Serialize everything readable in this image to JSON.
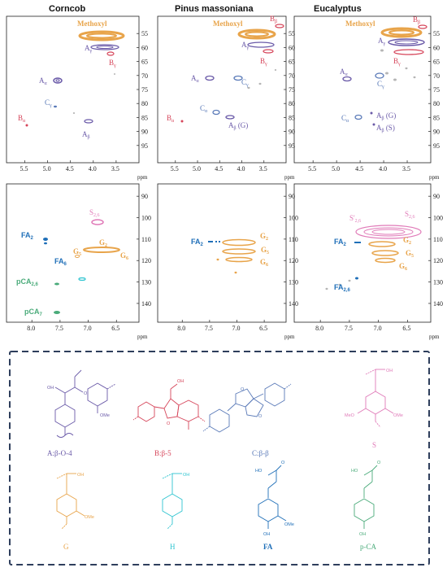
{
  "columns": [
    "Corncob",
    "Pinus massoniana",
    "Eucalyptus"
  ],
  "axes": {
    "top_y_ticks": [
      "55",
      "60",
      "65",
      "70",
      "75",
      "80",
      "85",
      "90",
      "95"
    ],
    "top_x_ticks": [
      "5.5",
      "5.0",
      "4.5",
      "4.0",
      "3.5"
    ],
    "bottom_y_ticks": [
      "90",
      "100",
      "110",
      "120",
      "130",
      "140"
    ],
    "bottom_x_ticks": [
      "8.0",
      "7.5",
      "7.0",
      "6.5"
    ],
    "unit": "ppm"
  },
  "chart_data": [
    {
      "type": "scatter",
      "panel": "Corncob aliphatic",
      "peaks": [
        {
          "label": "Methoxyl",
          "x": 3.8,
          "y": 55.8
        },
        {
          "label": "Aγ",
          "x": 3.8,
          "y": 59.8
        },
        {
          "label": "Bγ",
          "x": 3.55,
          "y": 63
        },
        {
          "label": "Aα",
          "x": 4.85,
          "y": 72
        },
        {
          "label": "Cγ",
          "x": 4.8,
          "y": 81.5
        },
        {
          "label": "Bα",
          "x": 5.5,
          "y": 87.2
        },
        {
          "label": "Aβ",
          "x": 4.05,
          "y": 86
        }
      ]
    },
    {
      "type": "scatter",
      "panel": "Pinus massoniana aliphatic",
      "peaks": [
        {
          "label": "Methoxyl",
          "x": 3.75,
          "y": 55.8
        },
        {
          "label": "Bβ",
          "x": 3.05,
          "y": 53.5
        },
        {
          "label": "Aγ",
          "x": 3.6,
          "y": 59.8
        },
        {
          "label": "Bγ",
          "x": 3.6,
          "y": 63
        },
        {
          "label": "Aα",
          "x": 4.85,
          "y": 71.8
        },
        {
          "label": "Cα",
          "x": 4.65,
          "y": 85
        },
        {
          "label": "Aβ (G)",
          "x": 4.3,
          "y": 84
        },
        {
          "label": "Bα",
          "x": 5.45,
          "y": 87
        }
      ]
    },
    {
      "type": "scatter",
      "panel": "Eucalyptus aliphatic",
      "peaks": [
        {
          "label": "Methoxyl",
          "x": 3.75,
          "y": 55.8
        },
        {
          "label": "Bβ",
          "x": 3.05,
          "y": 54
        },
        {
          "label": "Aγ",
          "x": 3.6,
          "y": 59.8
        },
        {
          "label": "Bγ",
          "x": 3.5,
          "y": 63
        },
        {
          "label": "Aα",
          "x": 4.85,
          "y": 72
        },
        {
          "label": "Cγ",
          "x": 3.8,
          "y": 74
        },
        {
          "label": "Cα",
          "x": 4.65,
          "y": 84.5
        },
        {
          "label": "Aβ (G)",
          "x": 4.3,
          "y": 84
        },
        {
          "label": "Aβ (S)",
          "x": 4.1,
          "y": 86
        }
      ]
    },
    {
      "type": "scatter",
      "panel": "Corncob aromatic",
      "peaks": [
        {
          "label": "S2,6",
          "x": 6.75,
          "y": 104
        },
        {
          "label": "FA2",
          "x": 7.6,
          "y": 111
        },
        {
          "label": "G2",
          "x": 6.75,
          "y": 111
        },
        {
          "label": "G5",
          "x": 6.85,
          "y": 115
        },
        {
          "label": "G6",
          "x": 6.75,
          "y": 118
        },
        {
          "label": "FA6",
          "x": 7.15,
          "y": 123
        },
        {
          "label": "pCA2,6",
          "x": 7.5,
          "y": 130
        },
        {
          "label": "pCA7",
          "x": 7.45,
          "y": 144
        }
      ]
    },
    {
      "type": "scatter",
      "panel": "Pinus massoniana aromatic",
      "peaks": [
        {
          "label": "FA2",
          "x": 7.3,
          "y": 111
        },
        {
          "label": "G2",
          "x": 6.85,
          "y": 111
        },
        {
          "label": "G5",
          "x": 6.85,
          "y": 115
        },
        {
          "label": "G6",
          "x": 6.85,
          "y": 118.5
        }
      ]
    },
    {
      "type": "scatter",
      "panel": "Eucalyptus aromatic",
      "peaks": [
        {
          "label": "S'2,6",
          "x": 7.1,
          "y": 107
        },
        {
          "label": "S2,6",
          "x": 6.6,
          "y": 104
        },
        {
          "label": "FA2",
          "x": 7.25,
          "y": 111
        },
        {
          "label": "G2",
          "x": 6.85,
          "y": 111
        },
        {
          "label": "G5",
          "x": 6.85,
          "y": 115
        },
        {
          "label": "G6",
          "x": 6.85,
          "y": 118
        },
        {
          "label": "FA2,6",
          "x": 7.2,
          "y": 127
        }
      ]
    }
  ],
  "labels": {
    "methoxyl": "Methoxyl",
    "A": "A",
    "B": "B",
    "C": "C",
    "S": "S",
    "G": "G",
    "FA": "FA",
    "pCA": "pCA",
    "sub_alpha": "α",
    "sub_beta": "β",
    "sub_gamma": "γ",
    "sub_26": "2,6",
    "sub_2": "2",
    "sub_5": "5",
    "sub_6": "6",
    "sub_7": "7",
    "g_paren": " (G)",
    "s_paren": " (S)",
    "s_prime": "S'"
  },
  "structures": [
    {
      "name": "A:β-O-4",
      "color": "#6a5aa8"
    },
    {
      "name": "B:β-5",
      "color": "#d6455a"
    },
    {
      "name": "C:β-β",
      "color": "#5a7ab8"
    },
    {
      "name": "S",
      "color": "#e07ab8"
    },
    {
      "name": "G",
      "color": "#e8a44a"
    },
    {
      "name": "H",
      "color": "#2ec4d0"
    },
    {
      "name": "FA",
      "color": "#1f6fb8"
    },
    {
      "name": "p-CA",
      "color": "#4aab7a"
    }
  ],
  "atoms": {
    "oh": "OH",
    "ho": "HO",
    "ome": "OMe",
    "meo": "MeO",
    "o": "O"
  },
  "colors": {
    "methoxyl": "#e8a44a",
    "A": "#6a5aa8",
    "B": "#d6455a",
    "C": "#5a7ab8",
    "S": "#e07ab8",
    "G": "#e8a44a",
    "FA": "#1f6fb8",
    "pCA": "#4aab7a",
    "H": "#2ec4d0",
    "grey": "#b5b5b5",
    "frame": "#2e3e5c"
  }
}
